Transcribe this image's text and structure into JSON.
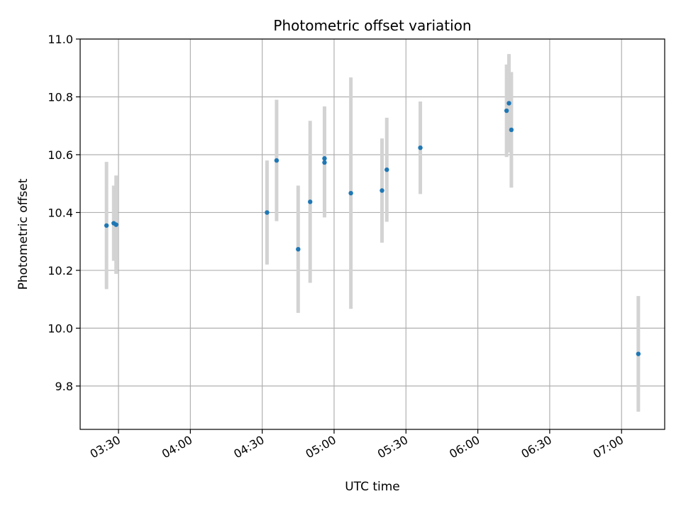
{
  "chart_data": {
    "type": "scatter",
    "title": "Photometric offset variation",
    "xlabel": "UTC time",
    "ylabel": "Photometric offset",
    "x_ticks": [
      "03:30",
      "04:00",
      "04:30",
      "05:00",
      "05:30",
      "06:00",
      "06:30",
      "07:00"
    ],
    "y_ticks": [
      "9.8",
      "10.0",
      "10.2",
      "10.4",
      "10.6",
      "10.8",
      "11.0"
    ],
    "xlim": [
      "03:14",
      "07:18"
    ],
    "ylim": [
      9.65,
      11.0
    ],
    "grid": true,
    "colors": {
      "point": "#1f77b4",
      "errorbar": "#d3d3d3",
      "grid": "#b0b0b0"
    },
    "points": [
      {
        "x": "03:25",
        "y": 10.355,
        "yerr": 0.22
      },
      {
        "x": "03:28",
        "y": 10.363,
        "yerr": 0.13
      },
      {
        "x": "03:29",
        "y": 10.358,
        "yerr": 0.17
      },
      {
        "x": "04:32",
        "y": 10.4,
        "yerr": 0.18
      },
      {
        "x": "04:36",
        "y": 10.58,
        "yerr": 0.21
      },
      {
        "x": "04:45",
        "y": 10.273,
        "yerr": 0.22
      },
      {
        "x": "04:50",
        "y": 10.437,
        "yerr": 0.28
      },
      {
        "x": "04:56",
        "y": 10.587,
        "yerr": 0.18
      },
      {
        "x": "04:56",
        "y": 10.573,
        "yerr": 0.19
      },
      {
        "x": "05:07",
        "y": 10.467,
        "yerr": 0.4
      },
      {
        "x": "05:20",
        "y": 10.476,
        "yerr": 0.18
      },
      {
        "x": "05:22",
        "y": 10.548,
        "yerr": 0.18
      },
      {
        "x": "05:36",
        "y": 10.624,
        "yerr": 0.16
      },
      {
        "x": "06:12",
        "y": 10.752,
        "yerr": 0.16
      },
      {
        "x": "06:13",
        "y": 10.778,
        "yerr": 0.17
      },
      {
        "x": "06:14",
        "y": 10.686,
        "yerr": 0.2
      },
      {
        "x": "07:07",
        "y": 9.911,
        "yerr": 0.2
      }
    ]
  }
}
